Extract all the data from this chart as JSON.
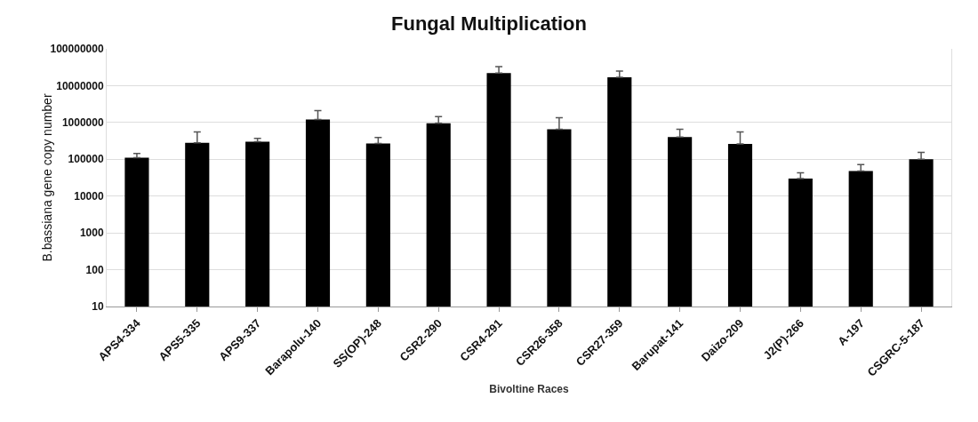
{
  "chart_data": {
    "type": "bar",
    "title": "Fungal Multiplication",
    "xlabel": "Bivoltine Races",
    "ylabel": "B.bassiana gene copy number",
    "categories": [
      "APS4-334",
      "APS5-335",
      "APS9-337",
      "Barapolu-140",
      "SS(OP)-248",
      "CSR2-290",
      "CSR4-291",
      "CSR26-358",
      "CSR27-359",
      "Barupat-141",
      "Daizo-209",
      "J2(P)-266",
      "A-197",
      "CSGRC-5-187"
    ],
    "values": [
      110000,
      280000,
      300000,
      1200000,
      270000,
      950000,
      22000000,
      650000,
      17000000,
      400000,
      260000,
      30000,
      48000,
      100000
    ],
    "errors": [
      [
        110000,
        144000
      ],
      [
        280000,
        550000
      ],
      [
        300000,
        370000
      ],
      [
        1200000,
        2100000
      ],
      [
        270000,
        390000
      ],
      [
        950000,
        1450000
      ],
      [
        22000000,
        33000000
      ],
      [
        650000,
        1350000
      ],
      [
        17000000,
        25000000
      ],
      [
        400000,
        650000
      ],
      [
        260000,
        550000
      ],
      [
        30000,
        43000
      ],
      [
        48000,
        72000
      ],
      [
        100000,
        155000
      ]
    ],
    "color": "#000000",
    "log": true,
    "ylim": [
      10,
      100000000
    ],
    "yticks": [
      10,
      100,
      1000,
      10000,
      100000,
      1000000,
      10000000,
      100000000
    ],
    "grid": "y"
  }
}
